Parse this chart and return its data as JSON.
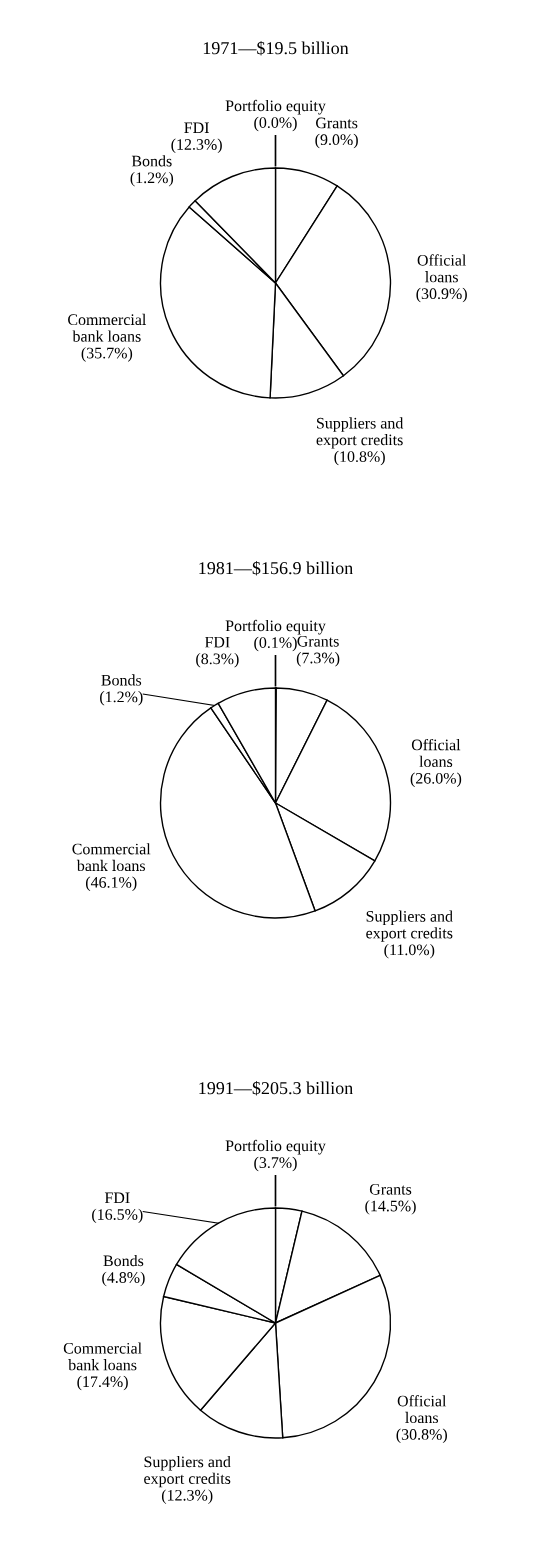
{
  "chart_data": [
    {
      "type": "pie",
      "title": "1971—$19.5 billion",
      "categories": [
        "Portfolio equity",
        "Grants",
        "Official\nloans",
        "Suppliers and\nexport credits",
        "Commercial\nbank loans",
        "Bonds",
        "FDI"
      ],
      "values": [
        0.0,
        9.0,
        30.9,
        10.8,
        35.7,
        1.2,
        12.3
      ],
      "value_labels": [
        "(0.0%)",
        "(9.0%)",
        "(30.9%)",
        "(10.8%)",
        "(35.7%)",
        "(1.2%)",
        "(12.3%)"
      ],
      "colors": [
        "#ffffff",
        "#ffffff",
        "#ffffff",
        "#ffffff",
        "#ffffff",
        "#ffffff",
        "#ffffff"
      ]
    },
    {
      "type": "pie",
      "title": "1981—$156.9 billion",
      "categories": [
        "Portfolio equity",
        "Grants",
        "Official\nloans",
        "Suppliers and\nexport credits",
        "Commercial\nbank loans",
        "Bonds",
        "FDI"
      ],
      "values": [
        0.1,
        7.3,
        26.0,
        11.0,
        46.1,
        1.2,
        8.3
      ],
      "value_labels": [
        "(0.1%)",
        "(7.3%)",
        "(26.0%)",
        "(11.0%)",
        "(46.1%)",
        "(1.2%)",
        "(8.3%)"
      ],
      "colors": [
        "#ffffff",
        "#ffffff",
        "#ffffff",
        "#ffffff",
        "#ffffff",
        "#ffffff",
        "#ffffff"
      ]
    },
    {
      "type": "pie",
      "title": "1991—$205.3 billion",
      "categories": [
        "Portfolio equity",
        "Grants",
        "Official\nloans",
        "Suppliers and\nexport credits",
        "Commercial\nbank loans",
        "Bonds",
        "FDI"
      ],
      "values": [
        3.7,
        14.5,
        30.8,
        12.3,
        17.4,
        4.8,
        16.5
      ],
      "value_labels": [
        "(3.7%)",
        "(14.5%)",
        "(30.8%)",
        "(12.3%)",
        "(17.4%)",
        "(4.8%)",
        "(16.5%)"
      ],
      "colors": [
        "#ffffff",
        "#ffffff",
        "#ffffff",
        "#ffffff",
        "#ffffff",
        "#ffffff",
        "#ffffff"
      ]
    }
  ]
}
